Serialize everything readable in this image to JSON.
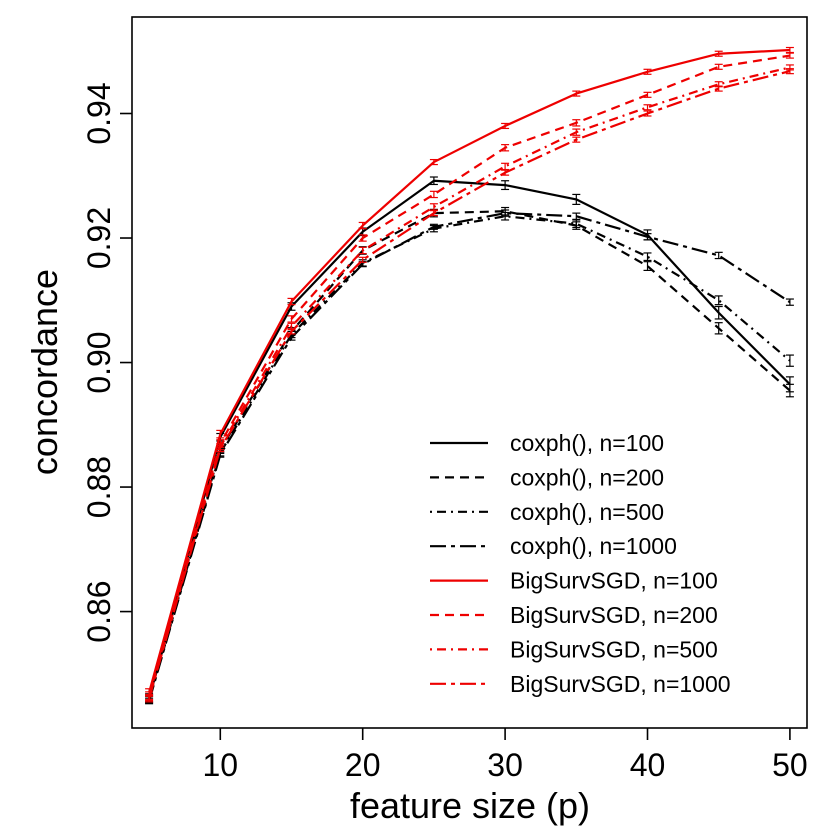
{
  "chart_data": {
    "type": "line",
    "title": "",
    "xlabel": "feature size (p)",
    "ylabel": "concordance",
    "xlim": [
      3.8,
      51.2
    ],
    "ylim": [
      0.8413,
      0.9555
    ],
    "xticks": [
      10,
      20,
      30,
      40,
      50
    ],
    "yticks": [
      0.86,
      0.88,
      0.9,
      0.92,
      0.94
    ],
    "ytick_labels": [
      "0.86",
      "0.88",
      "0.90",
      "0.92",
      "0.94"
    ],
    "grid": false,
    "legend_position": "bottom-right",
    "error_bars": true,
    "x": [
      5,
      10,
      15,
      20,
      25,
      30,
      35,
      40,
      45,
      50
    ],
    "series": [
      {
        "name": "coxph(), n=100",
        "color": "#000000",
        "dash": "solid",
        "values": [
          0.846,
          0.888,
          0.909,
          0.921,
          0.9292,
          0.9285,
          0.9262,
          0.9205,
          0.908,
          0.8965
        ],
        "errors": [
          0.0006,
          0.0006,
          0.0006,
          0.0006,
          0.0006,
          0.0007,
          0.0008,
          0.0008,
          0.001,
          0.0012
        ]
      },
      {
        "name": "coxph(), n=200",
        "color": "#000000",
        "dash": "dashed",
        "values": [
          0.8462,
          0.886,
          0.905,
          0.918,
          0.924,
          0.9243,
          0.922,
          0.9155,
          0.9055,
          0.8955
        ],
        "errors": [
          0.0006,
          0.0006,
          0.0006,
          0.0006,
          0.0006,
          0.0006,
          0.0006,
          0.0007,
          0.0009,
          0.001
        ]
      },
      {
        "name": "coxph(), n=500",
        "color": "#000000",
        "dash": "dotdash",
        "values": [
          0.8458,
          0.8855,
          0.9045,
          0.916,
          0.9215,
          0.9235,
          0.9223,
          0.917,
          0.91,
          0.9003
        ],
        "errors": [
          0.0005,
          0.0005,
          0.0005,
          0.0005,
          0.0005,
          0.0006,
          0.0006,
          0.0006,
          0.0007,
          0.0009
        ]
      },
      {
        "name": "coxph(), n=1000",
        "color": "#000000",
        "dash": "longdash-dot",
        "values": [
          0.8456,
          0.8852,
          0.904,
          0.9158,
          0.9218,
          0.924,
          0.9235,
          0.9202,
          0.9172,
          0.9097
        ],
        "errors": [
          0.0004,
          0.0004,
          0.0004,
          0.0004,
          0.0004,
          0.0005,
          0.0005,
          0.0005,
          0.0005,
          0.0005
        ]
      },
      {
        "name": "BigSurvSGD, n=100",
        "color": "#ee0000",
        "dash": "solid",
        "values": [
          0.847,
          0.8885,
          0.9098,
          0.922,
          0.9322,
          0.938,
          0.9432,
          0.9467,
          0.9496,
          0.9502
        ],
        "errors": [
          0.0006,
          0.0006,
          0.0005,
          0.0005,
          0.0004,
          0.0004,
          0.0004,
          0.0004,
          0.0004,
          0.0004
        ]
      },
      {
        "name": "BigSurvSGD, n=200",
        "color": "#ee0000",
        "dash": "dashed",
        "values": [
          0.8465,
          0.887,
          0.907,
          0.92,
          0.927,
          0.9345,
          0.9385,
          0.943,
          0.9475,
          0.9493
        ],
        "errors": [
          0.0006,
          0.0006,
          0.0005,
          0.0005,
          0.0005,
          0.0005,
          0.0005,
          0.0004,
          0.0004,
          0.0004
        ]
      },
      {
        "name": "BigSurvSGD, n=500",
        "color": "#ee0000",
        "dash": "dotdash",
        "values": [
          0.8462,
          0.8865,
          0.9058,
          0.918,
          0.925,
          0.9315,
          0.937,
          0.941,
          0.9447,
          0.9474
        ],
        "errors": [
          0.0005,
          0.0005,
          0.0005,
          0.0005,
          0.0005,
          0.0005,
          0.0005,
          0.0004,
          0.0004,
          0.0004
        ]
      },
      {
        "name": "BigSurvSGD, n=1000",
        "color": "#ee0000",
        "dash": "longdash-dot",
        "values": [
          0.846,
          0.8862,
          0.905,
          0.9165,
          0.924,
          0.9305,
          0.9358,
          0.94,
          0.944,
          0.9468
        ],
        "errors": [
          0.0005,
          0.0005,
          0.0004,
          0.0004,
          0.0004,
          0.0004,
          0.0004,
          0.0004,
          0.0004,
          0.0004
        ]
      }
    ]
  }
}
